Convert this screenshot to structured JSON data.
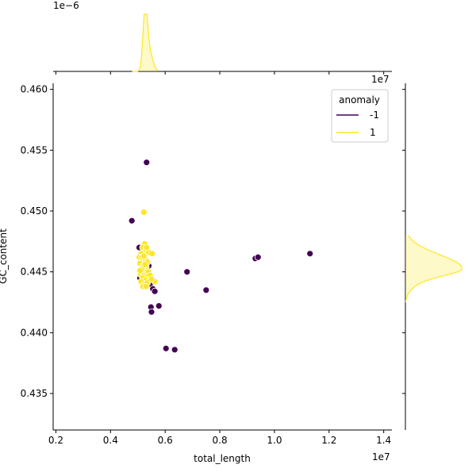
{
  "chart_data": {
    "type": "scatter",
    "title": "",
    "xlabel": "total_length",
    "ylabel": "GC_content",
    "x_offset_text": "1e7",
    "y_offset_text": "",
    "top_marginal_offset_text": "1e−6",
    "right_marginal_offset_text": "1e7",
    "xlim": [
      0.19,
      1.43
    ],
    "ylim": [
      0.432,
      0.4605
    ],
    "xticks": [
      0.2,
      0.4,
      0.6,
      0.8,
      1.0,
      1.2,
      1.4
    ],
    "xtick_labels": [
      "0.2",
      "0.4",
      "0.6",
      "0.8",
      "1.0",
      "1.2",
      "1.4"
    ],
    "yticks": [
      0.435,
      0.44,
      0.445,
      0.45,
      0.455,
      0.46
    ],
    "ytick_labels": [
      "0.435",
      "0.440",
      "0.445",
      "0.450",
      "0.455",
      "0.460"
    ],
    "grid": false,
    "legend": {
      "title": "anomaly",
      "placement": "top-right",
      "entries": [
        {
          "label": "-1",
          "color": "#440154"
        },
        {
          "label": "1",
          "color": "#fde725"
        }
      ]
    },
    "series": [
      {
        "name": "-1",
        "color": "#440154",
        "points": [
          [
            0.532,
            0.454
          ],
          [
            0.478,
            0.4492
          ],
          [
            0.505,
            0.447
          ],
          [
            0.525,
            0.445
          ],
          [
            0.545,
            0.444
          ],
          [
            0.548,
            0.4445
          ],
          [
            0.555,
            0.4436
          ],
          [
            0.562,
            0.4434
          ],
          [
            0.548,
            0.4421
          ],
          [
            0.577,
            0.4422
          ],
          [
            0.55,
            0.4417
          ],
          [
            0.603,
            0.4387
          ],
          [
            0.635,
            0.4386
          ],
          [
            0.68,
            0.445
          ],
          [
            0.75,
            0.4435
          ],
          [
            0.93,
            0.4461
          ],
          [
            0.94,
            0.4462
          ],
          [
            1.13,
            0.4465
          ],
          [
            0.512,
            0.4465
          ],
          [
            0.53,
            0.4455
          ],
          [
            0.508,
            0.4445
          ],
          [
            0.54,
            0.4455
          ]
        ]
      },
      {
        "name": "1",
        "color": "#fde725",
        "points": [
          [
            0.522,
            0.4499
          ],
          [
            0.525,
            0.4473
          ],
          [
            0.518,
            0.447
          ],
          [
            0.53,
            0.4468
          ],
          [
            0.512,
            0.4465
          ],
          [
            0.54,
            0.4466
          ],
          [
            0.552,
            0.4465
          ],
          [
            0.505,
            0.4462
          ],
          [
            0.515,
            0.4462
          ],
          [
            0.528,
            0.446
          ],
          [
            0.535,
            0.4458
          ],
          [
            0.508,
            0.4457
          ],
          [
            0.52,
            0.4455
          ],
          [
            0.53,
            0.4454
          ],
          [
            0.515,
            0.4452
          ],
          [
            0.525,
            0.445
          ],
          [
            0.538,
            0.445
          ],
          [
            0.51,
            0.4448
          ],
          [
            0.522,
            0.4447
          ],
          [
            0.533,
            0.4446
          ],
          [
            0.518,
            0.4445
          ],
          [
            0.528,
            0.4443
          ],
          [
            0.512,
            0.4442
          ],
          [
            0.524,
            0.444
          ],
          [
            0.535,
            0.4441
          ],
          [
            0.519,
            0.4438
          ],
          [
            0.53,
            0.4438
          ],
          [
            0.515,
            0.4452
          ],
          [
            0.527,
            0.4456
          ],
          [
            0.545,
            0.4447
          ],
          [
            0.522,
            0.4463
          ],
          [
            0.508,
            0.4451
          ],
          [
            0.562,
            0.4442
          ],
          [
            0.55,
            0.4444
          ],
          [
            0.532,
            0.447
          ]
        ]
      }
    ],
    "top_marginal": {
      "type": "kde",
      "series": [
        {
          "name": "1",
          "color": "#fde725",
          "peak_x": 0.527,
          "width": 0.008
        }
      ]
    },
    "right_marginal": {
      "type": "kde",
      "series": [
        {
          "name": "1",
          "color": "#fde725",
          "peak_y": 0.4453,
          "width": 0.0007
        }
      ]
    }
  }
}
